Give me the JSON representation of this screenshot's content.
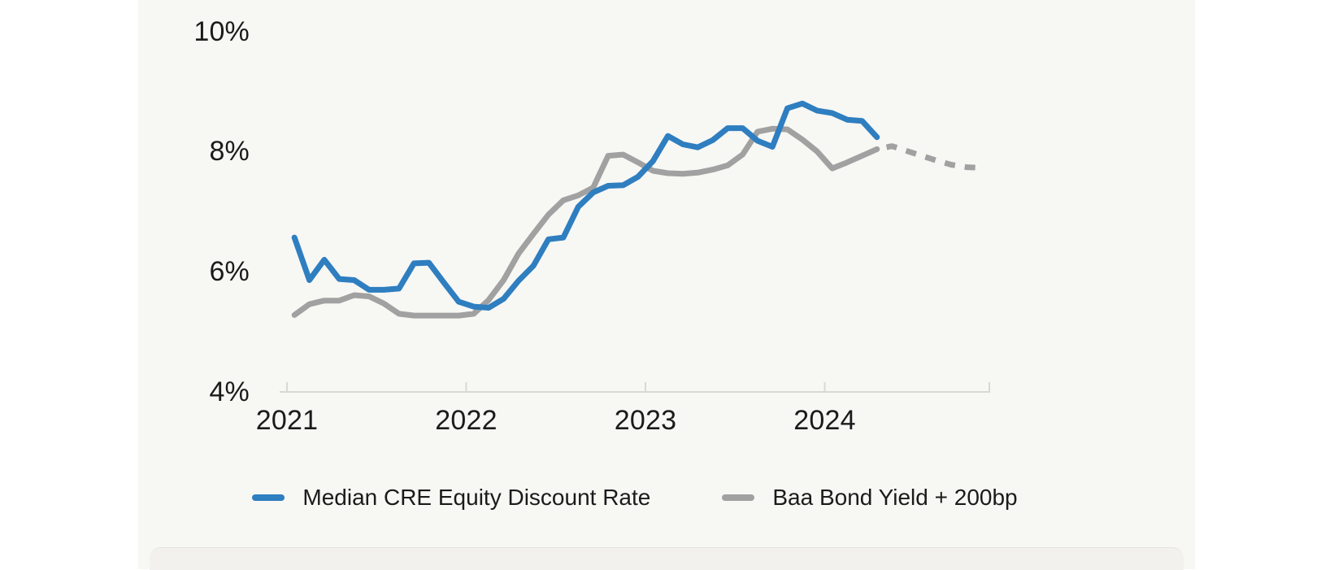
{
  "style": {
    "panel_background": "#f7f7f4",
    "text_color": "#1b1b1b",
    "axis_color": "#d9d8d4"
  },
  "chart_data": {
    "type": "line",
    "title": "",
    "x": {
      "start": "2021-01",
      "frequency": "monthly"
    },
    "x_axis": {
      "tick_labels": [
        "2021",
        "2022",
        "2023",
        "2024"
      ],
      "months_per_tick": 12
    },
    "y_axis": {
      "unit": "%",
      "min": 4,
      "max": 10,
      "ticks": [
        {
          "label": "10%",
          "value": 10
        },
        {
          "label": "8%",
          "value": 8
        },
        {
          "label": "6%",
          "value": 6
        },
        {
          "label": "4%",
          "value": 4
        }
      ]
    },
    "grid": false,
    "legend_position": "bottom",
    "series": [
      {
        "id": "baa-bond-yield",
        "name": "Baa Bond Yield + 200bp",
        "color": "#a1a1a1",
        "dashed": false,
        "start_offset": 0,
        "values": [
          5.28,
          5.46,
          5.52,
          5.52,
          5.61,
          5.59,
          5.47,
          5.3,
          5.27,
          5.27,
          5.27,
          5.27,
          5.3,
          5.53,
          5.86,
          6.3,
          6.63,
          6.95,
          7.19,
          7.27,
          7.4,
          7.93,
          7.95,
          7.82,
          7.68,
          7.64,
          7.63,
          7.65,
          7.7,
          7.77,
          7.95,
          8.33,
          8.38,
          8.37,
          8.2,
          8.0,
          7.72,
          7.82,
          7.93,
          8.04
        ]
      },
      {
        "id": "baa-bond-yield-forecast",
        "name": "Baa Bond Yield + 200bp (forecast)",
        "color": "#a1a1a1",
        "dashed": true,
        "start_offset": 39,
        "values": [
          8.04,
          8.09,
          8.01,
          7.93,
          7.85,
          7.78,
          7.74,
          7.73
        ]
      },
      {
        "id": "median-cre-equity-discount-rate",
        "name": "Median CRE Equity Discount Rate",
        "color": "#2e7ec0",
        "dashed": false,
        "start_offset": 0,
        "values": [
          6.57,
          5.86,
          6.2,
          5.88,
          5.86,
          5.7,
          5.7,
          5.72,
          6.14,
          6.15,
          5.82,
          5.5,
          5.42,
          5.4,
          5.55,
          5.85,
          6.1,
          6.54,
          6.57,
          7.08,
          7.32,
          7.43,
          7.44,
          7.58,
          7.84,
          8.26,
          8.12,
          8.07,
          8.19,
          8.39,
          8.39,
          8.18,
          8.08,
          8.72,
          8.8,
          8.68,
          8.64,
          8.53,
          8.51,
          8.24
        ]
      }
    ]
  },
  "legend": {
    "items": [
      {
        "label": "Median CRE Equity Discount Rate",
        "color": "#2e7ec0"
      },
      {
        "label": "Baa Bond Yield + 200bp",
        "color": "#a1a1a1"
      }
    ]
  }
}
